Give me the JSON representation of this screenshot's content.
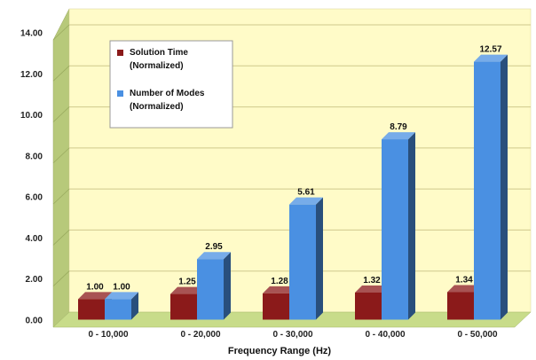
{
  "chart_data": {
    "type": "bar",
    "categories": [
      "0 - 10,000",
      "0 - 20,000",
      "0 - 30,000",
      "0 - 40,000",
      "0 - 50,000"
    ],
    "series": [
      {
        "name_lines": [
          "Solution Time",
          "(Normalized)"
        ],
        "values": [
          1.0,
          1.25,
          1.28,
          1.32,
          1.34
        ],
        "labels": [
          "1.00",
          "1.25",
          "1.28",
          "1.32",
          "1.34"
        ],
        "color": "#8b1a1a"
      },
      {
        "name_lines": [
          "Number of Modes",
          "(Normalized)"
        ],
        "values": [
          1.0,
          2.95,
          5.61,
          8.79,
          12.57
        ],
        "labels": [
          "1.00",
          "2.95",
          "5.61",
          "8.79",
          "12.57"
        ],
        "color": "#4a90e2"
      }
    ],
    "ylim": [
      0,
      14
    ],
    "yticks": [
      "0.00",
      "2.00",
      "4.00",
      "6.00",
      "8.00",
      "10.00",
      "12.00",
      "14.00"
    ],
    "xlabel": "Frequency Range (Hz)",
    "ylabel": "",
    "grid": true,
    "legend_position": "top-left",
    "colors": {
      "wall": "#fffbc8",
      "floor": "#c8dc8a",
      "side_wall": "#b7c97a"
    }
  }
}
